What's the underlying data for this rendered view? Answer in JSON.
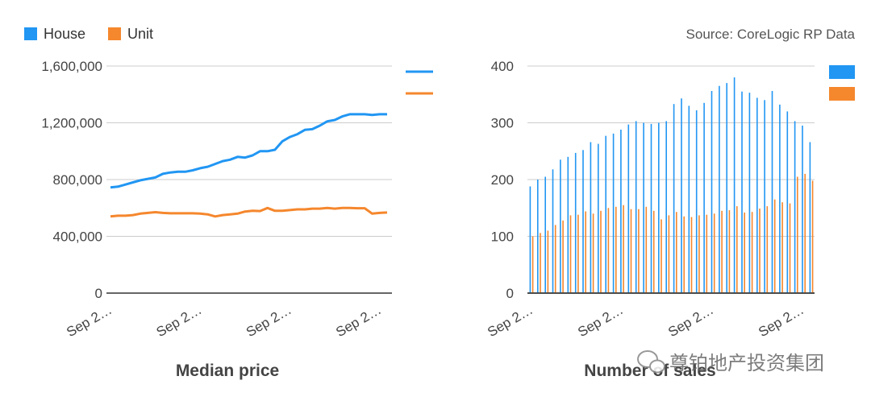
{
  "legend": [
    {
      "label": "House",
      "color": "#2196f3"
    },
    {
      "label": "Unit",
      "color": "#f5872d"
    }
  ],
  "source": "Source: CoreLogic RP Data",
  "watermark": "尊铂地产投资集团",
  "watermark_icon": "wechat-icon",
  "chart_data": [
    {
      "type": "line",
      "title": "Median price",
      "xlabel": "",
      "ylabel": "",
      "ylim": [
        0,
        1600000
      ],
      "yticks": [
        "0",
        "400,000",
        "800,000",
        "1,200,000",
        "1,600,000"
      ],
      "yticks_values": [
        0,
        400000,
        800000,
        1200000,
        1600000
      ],
      "xticks": [
        "Sep 2…",
        "Sep 2…",
        "Sep 2…",
        "Sep 2…"
      ],
      "grid": true,
      "series": [
        {
          "name": "House",
          "color": "#2196f3",
          "values": [
            745000,
            750000,
            765000,
            780000,
            795000,
            805000,
            815000,
            840000,
            850000,
            855000,
            855000,
            865000,
            880000,
            890000,
            910000,
            930000,
            940000,
            960000,
            955000,
            970000,
            1000000,
            1000000,
            1010000,
            1070000,
            1100000,
            1120000,
            1150000,
            1155000,
            1180000,
            1210000,
            1220000,
            1245000,
            1260000,
            1260000,
            1260000,
            1255000,
            1260000,
            1260000
          ]
        },
        {
          "name": "Unit",
          "color": "#f5872d",
          "values": [
            540000,
            545000,
            545000,
            550000,
            560000,
            565000,
            570000,
            565000,
            562000,
            562000,
            562000,
            562000,
            560000,
            555000,
            540000,
            550000,
            555000,
            560000,
            575000,
            580000,
            578000,
            600000,
            580000,
            580000,
            585000,
            590000,
            590000,
            595000,
            595000,
            600000,
            595000,
            600000,
            600000,
            598000,
            598000,
            560000,
            565000,
            568000
          ]
        }
      ]
    },
    {
      "type": "bar",
      "title": "Number of sales",
      "xlabel": "",
      "ylabel": "",
      "ylim": [
        0,
        400
      ],
      "yticks": [
        "0",
        "100",
        "200",
        "300",
        "400"
      ],
      "yticks_values": [
        0,
        100,
        200,
        300,
        400
      ],
      "xticks": [
        "Sep 2…",
        "Sep 2…",
        "Sep 2…",
        "Sep 2…"
      ],
      "grid": true,
      "series": [
        {
          "name": "House",
          "color": "#2196f3",
          "values": [
            188,
            200,
            205,
            218,
            235,
            240,
            247,
            252,
            266,
            263,
            277,
            281,
            288,
            297,
            303,
            300,
            298,
            300,
            303,
            333,
            343,
            330,
            322,
            335,
            356,
            365,
            370,
            380,
            355,
            353,
            344,
            340,
            356,
            332,
            320,
            303,
            295,
            266
          ]
        },
        {
          "name": "Unit",
          "color": "#f5872d",
          "values": [
            100,
            106,
            110,
            120,
            128,
            137,
            138,
            144,
            140,
            145,
            150,
            152,
            155,
            148,
            148,
            152,
            145,
            130,
            137,
            143,
            135,
            134,
            137,
            138,
            140,
            145,
            146,
            153,
            142,
            143,
            149,
            153,
            165,
            160,
            158,
            205,
            210,
            198
          ]
        }
      ]
    }
  ]
}
